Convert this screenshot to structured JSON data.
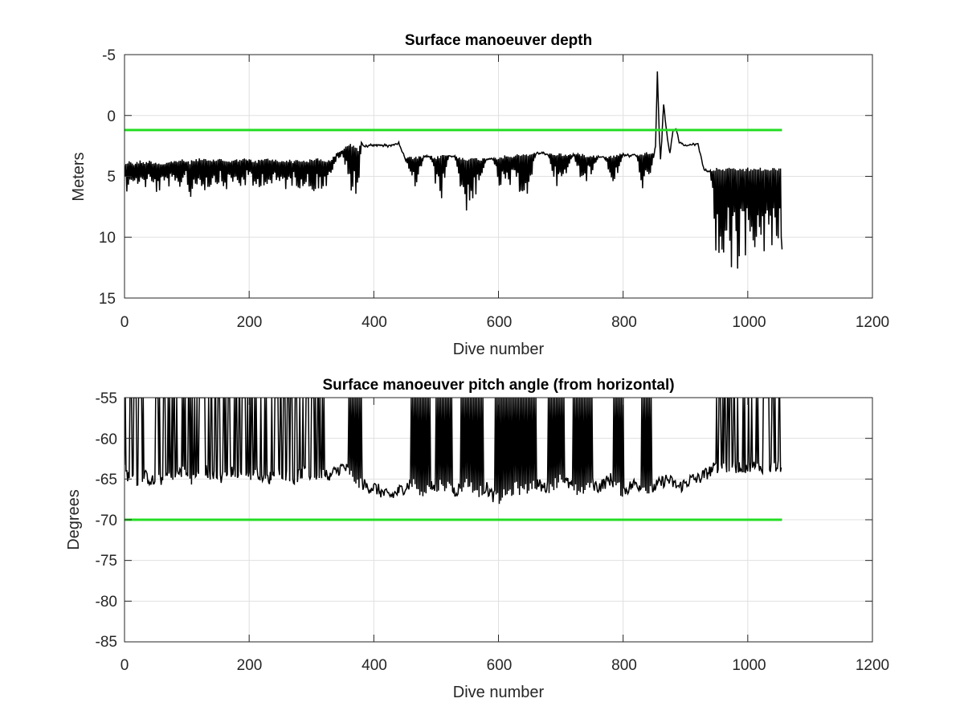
{
  "chart_data": [
    {
      "type": "line",
      "title": "Surface manoeuver depth",
      "xlabel": "Dive number",
      "ylabel": "Meters",
      "xlim": [
        0,
        1200
      ],
      "ylim": [
        -5,
        15
      ],
      "y_reversed": true,
      "xticks": [
        "0",
        "200",
        "400",
        "600",
        "800",
        "1000",
        "1200"
      ],
      "yticks": [
        "-5",
        "0",
        "5",
        "10",
        "15"
      ],
      "grid": true,
      "legend": "none",
      "colors": {
        "data": "#000000",
        "threshold": "#22dd22",
        "grid": "#e0e0e0"
      },
      "threshold": {
        "y": 1.2,
        "x": [
          0,
          1055
        ]
      },
      "series": [
        {
          "x": [
            0,
            5,
            10,
            15,
            20,
            25,
            30,
            40,
            50,
            60,
            70,
            80,
            90,
            100,
            105,
            110,
            120,
            130,
            140,
            150,
            160,
            170,
            180,
            190,
            200,
            210,
            220,
            230,
            240,
            250,
            260,
            270,
            280,
            290,
            300,
            310,
            320,
            330,
            340,
            350,
            360,
            370,
            375,
            380,
            385,
            390,
            400,
            410,
            420,
            430,
            440,
            450,
            460,
            470,
            480,
            490,
            500,
            510,
            520,
            530,
            540,
            550,
            560,
            570,
            580,
            590,
            600,
            610,
            620,
            630,
            640,
            650,
            660,
            670,
            680,
            690,
            700,
            710,
            720,
            730,
            740,
            750,
            760,
            770,
            780,
            790,
            800,
            810,
            820,
            830,
            840,
            845,
            850,
            852,
            855,
            858,
            860,
            862,
            865,
            870,
            875,
            880,
            885,
            890,
            900,
            910,
            920,
            930,
            940,
            950,
            955,
            960,
            965,
            970,
            975,
            980,
            985,
            990,
            995,
            1000,
            1005,
            1010,
            1015,
            1020,
            1025,
            1030,
            1035,
            1040,
            1045,
            1050,
            1055
          ],
          "base": [
            4.0,
            3.9,
            3.8,
            4.0,
            3.9,
            3.8,
            3.9,
            3.8,
            3.9,
            4.0,
            3.9,
            3.8,
            3.7,
            3.8,
            3.9,
            3.7,
            3.6,
            3.7,
            3.8,
            3.6,
            3.7,
            3.8,
            3.7,
            3.6,
            3.7,
            3.8,
            3.7,
            3.6,
            3.7,
            3.8,
            3.7,
            3.8,
            3.7,
            3.8,
            3.7,
            3.6,
            3.7,
            3.8,
            3.2,
            2.8,
            2.4,
            2.6,
            2.8,
            2.2,
            2.6,
            2.5,
            2.4,
            2.4,
            2.5,
            2.4,
            2.3,
            3.5,
            3.5,
            3.5,
            3.4,
            3.4,
            3.5,
            3.3,
            3.3,
            3.4,
            3.5,
            3.6,
            3.6,
            3.6,
            3.6,
            3.5,
            3.5,
            3.4,
            3.4,
            3.3,
            3.3,
            3.2,
            3.1,
            3.1,
            3.2,
            3.2,
            3.2,
            3.3,
            3.2,
            3.2,
            3.3,
            3.3,
            3.4,
            3.4,
            3.4,
            3.3,
            3.2,
            3.3,
            3.2,
            3.2,
            3.1,
            3.1,
            3.0,
            2.5,
            -3.5,
            1.5,
            3.5,
            2.0,
            -1.0,
            1.5,
            3.2,
            1.2,
            1.1,
            2.2,
            2.5,
            2.4,
            2.3,
            4.5,
            4.6,
            4.4,
            4.5,
            4.4,
            4.5,
            4.4,
            4.5,
            4.4,
            4.5,
            4.4,
            4.5,
            4.4,
            4.5,
            4.4,
            4.5,
            4.4,
            4.5,
            4.4,
            4.5,
            4.4,
            4.5,
            4.4,
            4.5
          ],
          "low": [
            5.5,
            6.5,
            5.0,
            6.8,
            6.0,
            5.5,
            6.2,
            5.8,
            6.5,
            6.3,
            5.8,
            6.6,
            6.0,
            5.0,
            8.0,
            6.2,
            5.8,
            6.3,
            5.9,
            5.6,
            6.4,
            5.8,
            5.9,
            6.1,
            5.5,
            6.6,
            5.7,
            5.9,
            6.1,
            5.8,
            6.2,
            5.8,
            6.0,
            5.9,
            6.4,
            6.1,
            6.3,
            5.6,
            3.6,
            3.5,
            6.0,
            6.5,
            6.9,
            2.2,
            2.6,
            2.5,
            2.4,
            2.4,
            2.5,
            2.4,
            2.3,
            3.5,
            6.0,
            5.9,
            3.4,
            3.4,
            6.0,
            7.0,
            3.3,
            3.4,
            6.5,
            8.1,
            7.0,
            6.5,
            3.6,
            3.5,
            6.0,
            6.3,
            6.0,
            6.2,
            6.5,
            7.1,
            3.1,
            3.1,
            3.2,
            5.5,
            6.3,
            5.0,
            3.2,
            5.0,
            5.5,
            5.0,
            3.4,
            3.4,
            5.5,
            5.5,
            3.2,
            3.3,
            3.2,
            6.0,
            6.3,
            5.5,
            3.0,
            2.5,
            -3.5,
            1.5,
            3.5,
            2.0,
            -1.0,
            1.5,
            3.2,
            1.2,
            1.1,
            2.2,
            2.5,
            2.4,
            2.3,
            4.5,
            4.6,
            13.5,
            11.5,
            13.0,
            11.0,
            12.5,
            14.5,
            11.5,
            14.0,
            11.0,
            12.0,
            11.5,
            12.0,
            10.5,
            12.5,
            11.0,
            11.5,
            10.5,
            12.0,
            11.0,
            10.0,
            10.5,
            11.0
          ]
        }
      ]
    },
    {
      "type": "line",
      "title": "Surface manoeuver pitch angle (from horizontal)",
      "xlabel": "Dive number",
      "ylabel": "Degrees",
      "xlim": [
        0,
        1200
      ],
      "ylim": [
        -85,
        -55
      ],
      "xticks": [
        "0",
        "200",
        "400",
        "600",
        "800",
        "1000",
        "1200"
      ],
      "yticks": [
        "-55",
        "-60",
        "-65",
        "-70",
        "-75",
        "-80",
        "-85"
      ],
      "grid": true,
      "legend": "none",
      "colors": {
        "data": "#000000",
        "threshold": "#22dd22",
        "grid": "#e0e0e0"
      },
      "threshold": {
        "y": -70,
        "x": [
          0,
          1055
        ]
      },
      "series": [
        {
          "x": [
            0,
            10,
            20,
            30,
            40,
            50,
            60,
            70,
            80,
            90,
            100,
            110,
            120,
            130,
            140,
            150,
            160,
            170,
            180,
            190,
            200,
            210,
            220,
            230,
            240,
            250,
            260,
            270,
            280,
            290,
            300,
            310,
            320,
            330,
            340,
            350,
            360,
            370,
            380,
            390,
            400,
            410,
            420,
            430,
            440,
            450,
            460,
            470,
            480,
            490,
            500,
            510,
            520,
            530,
            540,
            550,
            560,
            570,
            580,
            590,
            600,
            610,
            620,
            630,
            640,
            650,
            660,
            670,
            680,
            690,
            700,
            710,
            720,
            730,
            740,
            750,
            760,
            770,
            780,
            790,
            800,
            810,
            820,
            830,
            840,
            850,
            860,
            870,
            880,
            890,
            900,
            910,
            920,
            930,
            940,
            950,
            960,
            970,
            980,
            990,
            1000,
            1010,
            1020,
            1030,
            1040,
            1050,
            1055
          ],
          "y": [
            -64.0,
            -65.0,
            -65.5,
            -64.5,
            -65.0,
            -65.5,
            -65.0,
            -64.5,
            -65.0,
            -64.0,
            -64.5,
            -65.0,
            -64.5,
            -64.0,
            -64.5,
            -65.0,
            -64.5,
            -64.0,
            -64.5,
            -65.0,
            -64.5,
            -64.0,
            -64.5,
            -65.0,
            -64.5,
            -64.0,
            -64.5,
            -65.0,
            -64.5,
            -64.0,
            -64.5,
            -64.5,
            -64.0,
            -64.5,
            -64.0,
            -63.5,
            -64.0,
            -65.0,
            -65.5,
            -66.0,
            -66.0,
            -66.5,
            -67.0,
            -67.0,
            -66.5,
            -66.0,
            -65.5,
            -66.0,
            -66.5,
            -66.0,
            -66.0,
            -65.5,
            -66.0,
            -66.5,
            -66.0,
            -65.5,
            -66.0,
            -66.5,
            -66.0,
            -67.0,
            -67.5,
            -67.0,
            -66.5,
            -66.0,
            -66.5,
            -66.0,
            -65.5,
            -66.0,
            -66.0,
            -65.5,
            -65.0,
            -65.5,
            -66.0,
            -66.5,
            -66.0,
            -65.5,
            -66.0,
            -65.5,
            -65.0,
            -66.0,
            -66.5,
            -66.0,
            -65.5,
            -66.0,
            -66.5,
            -66.0,
            -65.5,
            -65.0,
            -65.5,
            -66.0,
            -65.5,
            -65.0,
            -65.0,
            -64.5,
            -64.0,
            -63.5,
            -63.5,
            -63.5,
            -63.5,
            -63.5,
            -63.5,
            -63.5,
            -63.5,
            -63.5,
            -63.5,
            -63.5,
            -63.5
          ],
          "spike_bands": [
            [
              0,
              330
            ],
            [
              360,
              380
            ],
            [
              460,
              490
            ],
            [
              500,
              525
            ],
            [
              540,
              575
            ],
            [
              595,
              660
            ],
            [
              680,
              705
            ],
            [
              720,
              750
            ],
            [
              785,
              800
            ],
            [
              830,
              845
            ],
            [
              950,
              1055
            ]
          ]
        }
      ]
    }
  ]
}
